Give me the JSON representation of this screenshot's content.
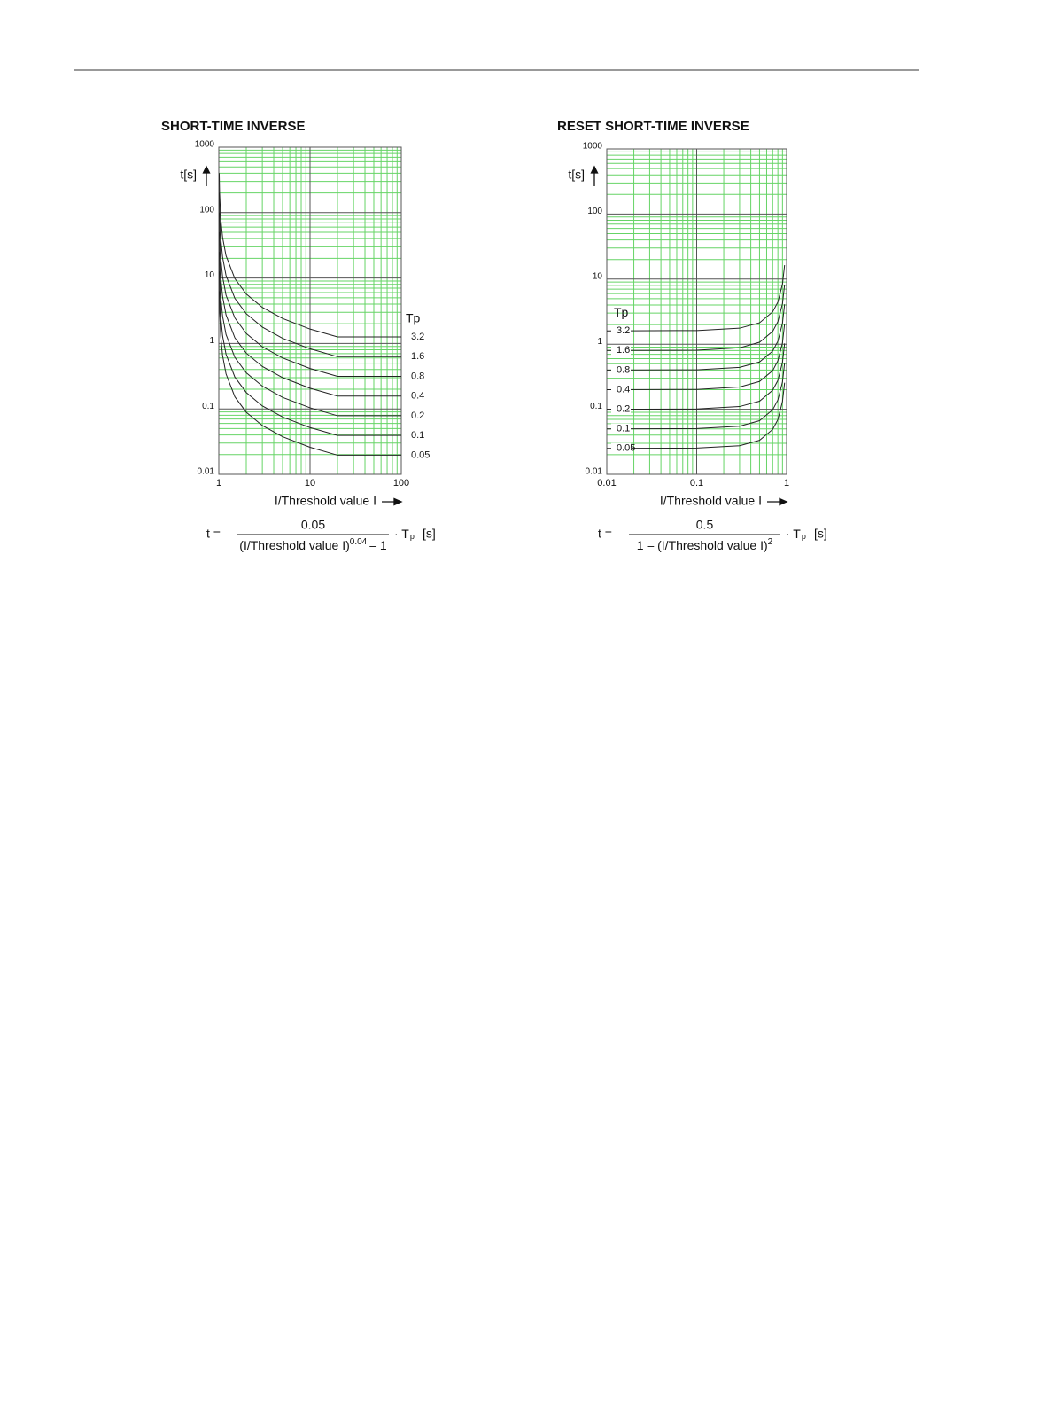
{
  "chart_data": [
    {
      "type": "line",
      "title": "SHORT-TIME INVERSE",
      "y_label": "t[s]",
      "x_label": "I/Threshold value I",
      "xlog": true,
      "ylog": true,
      "xlim": [
        1,
        100
      ],
      "ylim": [
        0.01,
        1000
      ],
      "xticks": [
        1,
        10,
        100
      ],
      "yticks": [
        0.01,
        0.1,
        1,
        10,
        100,
        1000
      ],
      "minor_xticks": [
        2,
        3,
        4,
        5,
        6,
        7,
        8,
        9,
        20,
        30,
        40,
        50,
        60,
        70,
        80,
        90
      ],
      "minor_yticks": [
        0.02,
        0.03,
        0.04,
        0.05,
        0.06,
        0.07,
        0.08,
        0.09,
        0.2,
        0.3,
        0.4,
        0.5,
        0.6,
        0.7,
        0.8,
        0.9,
        2,
        3,
        4,
        5,
        6,
        7,
        8,
        9,
        20,
        30,
        40,
        50,
        60,
        70,
        80,
        90,
        200,
        300,
        400,
        500,
        600,
        700,
        800,
        900
      ],
      "grid": true,
      "grid_color": "#66d466",
      "major_grid_color": "#555555",
      "legend": "right",
      "legend_title": "Tp",
      "x": [
        1.01,
        1.02,
        1.05,
        1.1,
        1.2,
        1.5,
        2,
        3,
        5,
        10,
        20,
        100
      ],
      "series": [
        {
          "name": "3.2",
          "color": "#222222",
          "values": [
            402,
            202,
            81.9,
            41.9,
            21.9,
            9.79,
            5.69,
            3.56,
            2.41,
            1.66,
            1.26,
            1.26
          ]
        },
        {
          "name": "1.6",
          "color": "#222222",
          "values": [
            201,
            101,
            41.0,
            20.9,
            10.9,
            4.89,
            2.85,
            1.78,
            1.2,
            0.829,
            0.628,
            0.628
          ]
        },
        {
          "name": "0.8",
          "color": "#222222",
          "values": [
            100,
            50.5,
            20.5,
            10.5,
            5.46,
            2.45,
            1.42,
            0.89,
            0.602,
            0.415,
            0.314,
            0.314
          ]
        },
        {
          "name": "0.4",
          "color": "#222222",
          "values": [
            50.2,
            25.2,
            10.2,
            5.24,
            2.73,
            1.22,
            0.711,
            0.445,
            0.301,
            0.207,
            0.157,
            0.157
          ]
        },
        {
          "name": "0.2",
          "color": "#222222",
          "values": [
            25.1,
            12.6,
            5.12,
            2.62,
            1.37,
            0.612,
            0.356,
            0.223,
            0.15,
            0.104,
            0.0786,
            0.0786
          ]
        },
        {
          "name": "0.1",
          "color": "#222222",
          "values": [
            12.6,
            6.31,
            2.56,
            1.31,
            0.683,
            0.306,
            0.178,
            0.111,
            0.0752,
            0.0518,
            0.0393,
            0.0393
          ]
        },
        {
          "name": "0.05",
          "color": "#222222",
          "values": [
            6.28,
            3.16,
            1.28,
            0.655,
            0.342,
            0.153,
            0.0889,
            0.0557,
            0.0376,
            0.0259,
            0.0196,
            0.0196
          ]
        }
      ],
      "formula": {
        "lhs": "t =",
        "numerator": "0.05",
        "denominator": "(I/Threshold value I)",
        "exponent": "0.04",
        "denominator_tail": "– 1",
        "factor": "· T",
        "subscript": "p",
        "unit": "[s]"
      }
    },
    {
      "type": "line",
      "title": "RESET SHORT-TIME INVERSE",
      "y_label": "t[s]",
      "x_label": "I/Threshold value I",
      "xlog": true,
      "ylog": true,
      "xlim": [
        0.01,
        1
      ],
      "ylim": [
        0.01,
        1000
      ],
      "xticks": [
        0.01,
        0.1,
        1
      ],
      "yticks": [
        0.01,
        0.1,
        1,
        10,
        100,
        1000
      ],
      "minor_xticks": [
        0.02,
        0.03,
        0.04,
        0.05,
        0.06,
        0.07,
        0.08,
        0.09,
        0.2,
        0.3,
        0.4,
        0.5,
        0.6,
        0.7,
        0.8,
        0.9
      ],
      "minor_yticks": [
        0.02,
        0.03,
        0.04,
        0.05,
        0.06,
        0.07,
        0.08,
        0.09,
        0.2,
        0.3,
        0.4,
        0.5,
        0.6,
        0.7,
        0.8,
        0.9,
        2,
        3,
        4,
        5,
        6,
        7,
        8,
        9,
        20,
        30,
        40,
        50,
        60,
        70,
        80,
        90,
        200,
        300,
        400,
        500,
        600,
        700,
        800,
        900
      ],
      "grid": true,
      "grid_color": "#66d466",
      "major_grid_color": "#555555",
      "legend": "left",
      "legend_title": "Tp",
      "x": [
        0.01,
        0.1,
        0.3,
        0.5,
        0.7,
        0.8,
        0.9,
        0.95
      ],
      "series": [
        {
          "name": "3.2",
          "color": "#222222",
          "values": [
            1.6,
            1.62,
            1.76,
            2.13,
            3.14,
            4.44,
            8.42,
            16.4
          ]
        },
        {
          "name": "1.6",
          "color": "#222222",
          "values": [
            0.8,
            0.808,
            0.879,
            1.07,
            1.57,
            2.22,
            4.21,
            8.21
          ]
        },
        {
          "name": "0.8",
          "color": "#222222",
          "values": [
            0.4,
            0.404,
            0.44,
            0.533,
            0.784,
            1.11,
            2.11,
            4.1
          ]
        },
        {
          "name": "0.4",
          "color": "#222222",
          "values": [
            0.2,
            0.202,
            0.22,
            0.267,
            0.392,
            0.556,
            1.05,
            2.05
          ]
        },
        {
          "name": "0.2",
          "color": "#222222",
          "values": [
            0.1,
            0.101,
            0.11,
            0.133,
            0.196,
            0.278,
            0.526,
            1.03
          ]
        },
        {
          "name": "0.1",
          "color": "#222222",
          "values": [
            0.05,
            0.0505,
            0.0549,
            0.0667,
            0.098,
            0.139,
            0.263,
            0.513
          ]
        },
        {
          "name": "0.05",
          "color": "#222222",
          "values": [
            0.025,
            0.0253,
            0.0275,
            0.0333,
            0.049,
            0.0694,
            0.132,
            0.256
          ]
        }
      ],
      "formula": {
        "lhs": "t =",
        "numerator": "0.5",
        "denominator": "1 – (I/Threshold value I)",
        "exponent": "2",
        "denominator_tail": "",
        "factor": "· T",
        "subscript": "p",
        "unit": "[s]"
      }
    }
  ]
}
